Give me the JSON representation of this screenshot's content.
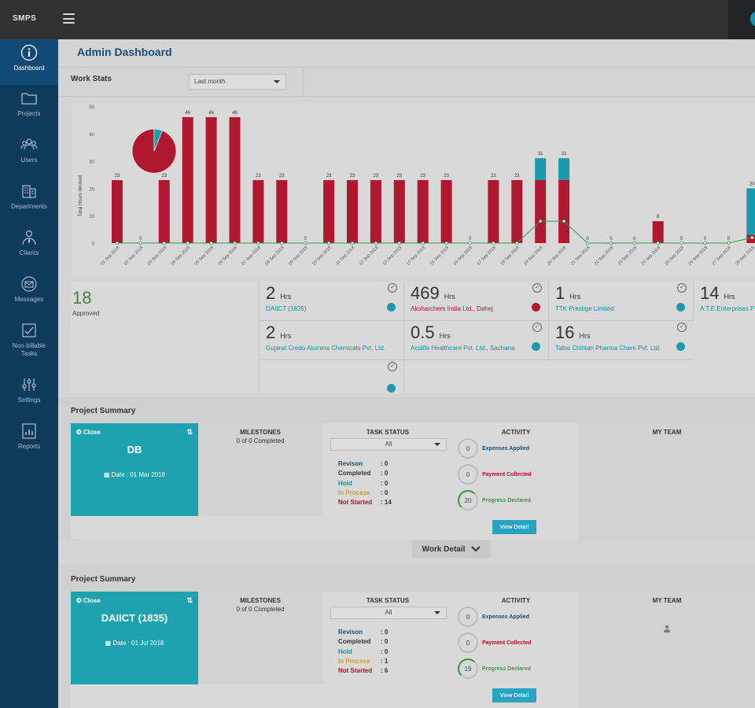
{
  "app": {
    "brand": "SMPS"
  },
  "sidebar": {
    "items": [
      {
        "label": "Dashboard",
        "icon": "info-icon",
        "active": true
      },
      {
        "label": "Projects",
        "icon": "folder-icon"
      },
      {
        "label": "Users",
        "icon": "users-icon"
      },
      {
        "label": "Departments",
        "icon": "building-icon"
      },
      {
        "label": "Clients",
        "icon": "client-icon"
      },
      {
        "label": "Messages",
        "icon": "messages-icon"
      },
      {
        "label": "Non-billable Tasks",
        "icon": "task-icon"
      },
      {
        "label": "Settings",
        "icon": "sliders-icon"
      },
      {
        "label": "Reports",
        "icon": "reports-icon"
      }
    ]
  },
  "header": {
    "title": "Admin Dashboard"
  },
  "work_stats": {
    "title": "Work Stats",
    "period": "Last month",
    "approved_count": "18",
    "approved_label": "Approved",
    "unit": "Hrs",
    "cards": [
      {
        "value": "2",
        "client": "DAIICT (1835)",
        "color": "#1a9aae"
      },
      {
        "value": "469",
        "client": "Aksharchem India Ltd., Dahej",
        "color": "#b0182f"
      },
      {
        "value": "1",
        "client": "TTK Prestige Limited",
        "color": "#1a9aae"
      },
      {
        "value": "14",
        "client": "A.T.E.Enterprises P",
        "color": "#1a9aae"
      },
      {
        "value": "2",
        "client": "Gujarat Credo Alumina Chemicals Pvt. Ltd.",
        "color": "#1a9aae"
      },
      {
        "value": "0.5",
        "client": "Aculife Healthcare Pvt. Ltd., Sachana",
        "color": "#1a9aae"
      },
      {
        "value": "16",
        "client": "Tatva Chintan Pharma Chem Pvt. Ltd.",
        "color": "#1a9aae"
      }
    ]
  },
  "chart_data": {
    "type": "bar",
    "ylabel": "Total Hours Worked",
    "ylim": [
      0,
      50
    ],
    "yticks": [
      "0",
      "10",
      "20",
      "30",
      "40",
      "50"
    ],
    "categories": [
      "01 Sep 2018",
      "02 Sep 2018",
      "03 Sep 2018",
      "04 Sep 2018",
      "05 Sep 2018",
      "06 Sep 2018",
      "07 Sep 2018",
      "08 Sep 2018",
      "09 Sep 2018",
      "10 Sep 2018",
      "11 Sep 2018",
      "12 Sep 2018",
      "13 Sep 2018",
      "14 Sep 2018",
      "15 Sep 2018",
      "16 Sep 2018",
      "17 Sep 2018",
      "18 Sep 2018",
      "19 Sep 2018",
      "20 Sep 2018",
      "21 Sep 2018",
      "22 Sep 2018",
      "23 Sep 2018",
      "24 Sep 2018",
      "25 Sep 2018",
      "26 Sep 2018",
      "27 Sep 2018",
      "28 Sep 2018",
      "29"
    ],
    "total_labels": [
      "23",
      "0",
      "23",
      "46",
      "46",
      "46",
      "23",
      "23",
      "0",
      "23",
      "23",
      "23",
      "23",
      "23",
      "23",
      "0",
      "23",
      "23",
      "31",
      "31",
      "0",
      "0",
      "0",
      "8",
      "0",
      "0",
      "0",
      "20",
      ""
    ],
    "series": [
      {
        "color": "#b0182f",
        "values": [
          23,
          0,
          23,
          46,
          46,
          46,
          23,
          23,
          0,
          23,
          23,
          23,
          23,
          23,
          23,
          0,
          23,
          23,
          23,
          23,
          0,
          0,
          0,
          8,
          0,
          0,
          0,
          3,
          0
        ]
      },
      {
        "color": "#1a9aae",
        "values": [
          0,
          0,
          0,
          0,
          0,
          0,
          0,
          0,
          0,
          0,
          0,
          0,
          0,
          0,
          0,
          0,
          0,
          0,
          8,
          8,
          0,
          0,
          0,
          0,
          0,
          0,
          0,
          17,
          0
        ]
      }
    ],
    "line_series": {
      "color": "#2e9a52",
      "values": [
        0,
        0,
        0,
        0,
        0,
        0,
        0,
        0,
        0,
        0,
        0,
        0,
        0,
        0,
        0,
        0,
        0,
        0,
        8,
        8,
        0,
        0,
        0,
        0,
        0,
        0,
        0,
        2,
        0
      ]
    },
    "pie": [
      {
        "color": "#b0182f",
        "value": 94
      },
      {
        "color": "#1a9aae",
        "value": 6
      }
    ]
  },
  "projects": [
    {
      "section_title": "Project Summary",
      "close_label": "Close",
      "name": "DB",
      "date": "Date : 01 Mar 2018",
      "milestones_head": "MILESTONES",
      "milestones_text": "0 of 0 Completed",
      "task_head": "TASK STATUS",
      "task_filter": "All",
      "tasks": [
        {
          "label": "Revison",
          "value": ": 0",
          "color": "#1c4c73"
        },
        {
          "label": "Completed",
          "value": ": 0",
          "color": "#333333"
        },
        {
          "label": "Hold",
          "value": ": 0",
          "color": "#1b8ea3"
        },
        {
          "label": "In Process",
          "value": ": 0",
          "color": "#c9a227"
        },
        {
          "label": "Not Started",
          "value": ": 14",
          "color": "#9c1c2c"
        }
      ],
      "activity_head": "ACTIVITY",
      "activity": [
        {
          "value": "0",
          "label": "Expenses Applied",
          "color": "#1c4c73"
        },
        {
          "value": "0",
          "label": "Payment Collected",
          "color": "#b0182f"
        },
        {
          "value": "20",
          "label": "Progress Declared",
          "color": "#3c9a3c"
        }
      ],
      "view_label": "View Detail",
      "team_head": "MY TEAM"
    },
    {
      "section_title": "Project Summary",
      "close_label": "Close",
      "name": "DAIICT (1835)",
      "date": "Date : 01 Jul 2018",
      "milestones_head": "MILESTONES",
      "milestones_text": "0 of 0 Completed",
      "task_head": "TASK STATUS",
      "task_filter": "All",
      "tasks": [
        {
          "label": "Revison",
          "value": ": 0",
          "color": "#1c4c73"
        },
        {
          "label": "Completed",
          "value": ": 0",
          "color": "#333333"
        },
        {
          "label": "Hold",
          "value": ": 0",
          "color": "#1b8ea3"
        },
        {
          "label": "In Process",
          "value": ": 1",
          "color": "#c9a227"
        },
        {
          "label": "Not Started",
          "value": ": 6",
          "color": "#9c1c2c"
        }
      ],
      "activity_head": "ACTIVITY",
      "activity": [
        {
          "value": "0",
          "label": "Expenses Applied",
          "color": "#1c4c73"
        },
        {
          "value": "0",
          "label": "Payment Collected",
          "color": "#b0182f"
        },
        {
          "value": "19",
          "label": "Progress Declared",
          "color": "#3c9a3c"
        }
      ],
      "view_label": "View Detail",
      "team_head": "MY TEAM"
    }
  ],
  "work_detail": {
    "label": "Work Detail"
  }
}
